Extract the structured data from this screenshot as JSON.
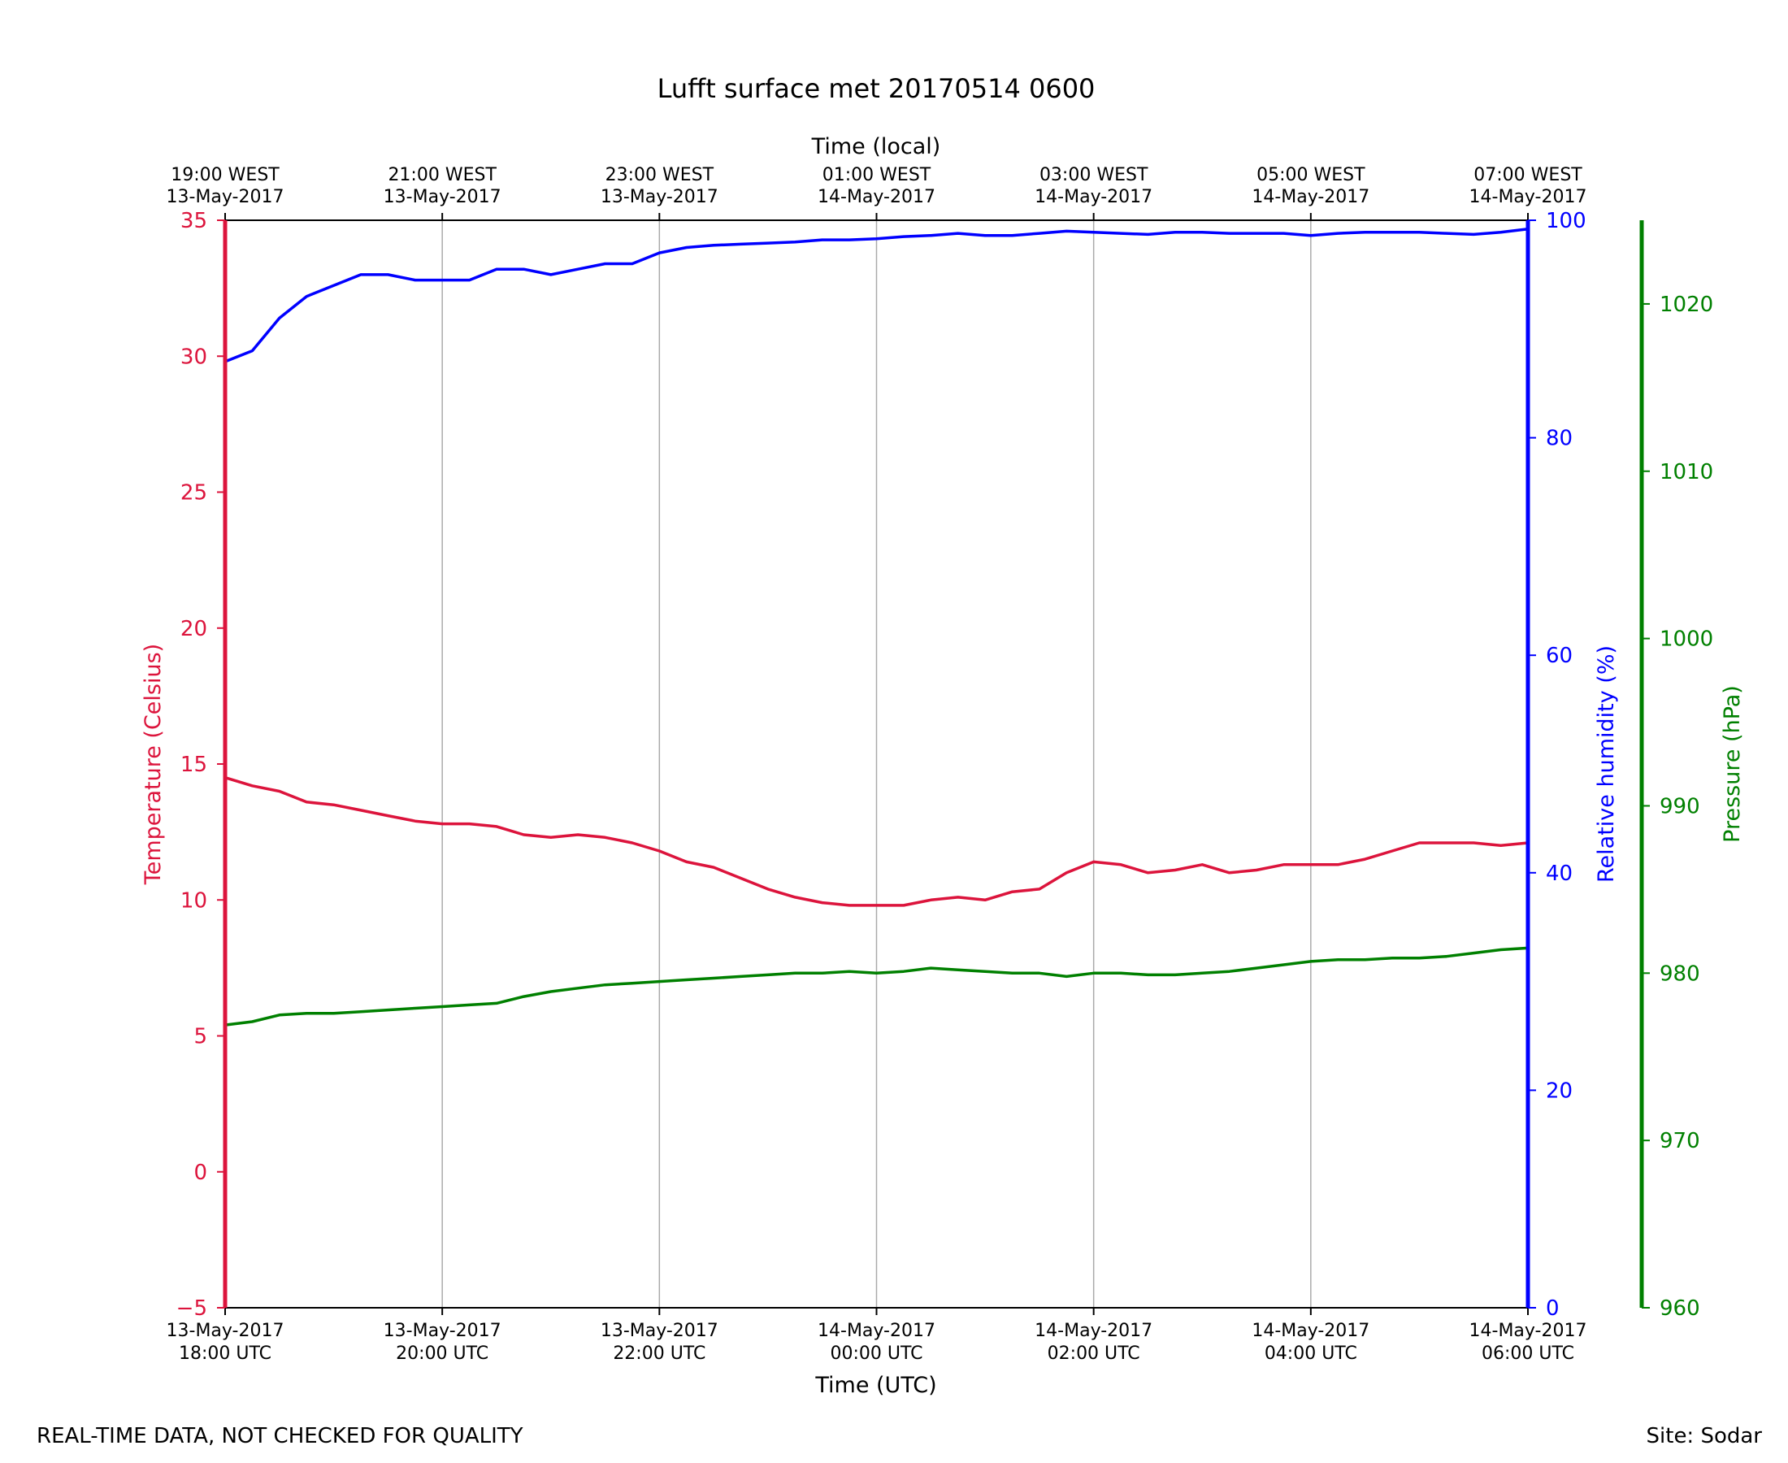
{
  "footer": {
    "left_note": "REAL-TIME DATA, NOT CHECKED FOR QUALITY",
    "site": "Site: Sodar"
  },
  "colors": {
    "temperature": "#dc143c",
    "humidity": "#0000ff",
    "pressure": "#008000",
    "grid": "#aaaaaa",
    "axis": "#000000"
  },
  "chart_data": {
    "type": "line",
    "title": "Lufft surface met 20170514 0600",
    "xlabel": "Time (UTC)",
    "x2label": "Time (local)",
    "xlim": [
      0,
      12
    ],
    "x_unit": "hours since 13-May-2017 18:00 UTC",
    "x_ticks": [
      {
        "x": 0,
        "utc": [
          "13-May-2017",
          "18:00 UTC"
        ],
        "local": [
          "19:00 WEST",
          "13-May-2017"
        ]
      },
      {
        "x": 2,
        "utc": [
          "13-May-2017",
          "20:00 UTC"
        ],
        "local": [
          "21:00 WEST",
          "13-May-2017"
        ]
      },
      {
        "x": 4,
        "utc": [
          "13-May-2017",
          "22:00 UTC"
        ],
        "local": [
          "23:00 WEST",
          "13-May-2017"
        ]
      },
      {
        "x": 6,
        "utc": [
          "14-May-2017",
          "00:00 UTC"
        ],
        "local": [
          "01:00 WEST",
          "14-May-2017"
        ]
      },
      {
        "x": 8,
        "utc": [
          "14-May-2017",
          "02:00 UTC"
        ],
        "local": [
          "03:00 WEST",
          "14-May-2017"
        ]
      },
      {
        "x": 10,
        "utc": [
          "14-May-2017",
          "04:00 UTC"
        ],
        "local": [
          "05:00 WEST",
          "14-May-2017"
        ]
      },
      {
        "x": 12,
        "utc": [
          "14-May-2017",
          "06:00 UTC"
        ],
        "local": [
          "07:00 WEST",
          "14-May-2017"
        ]
      }
    ],
    "grid": "vertical",
    "axes": [
      {
        "id": "temp",
        "label": "Temperature (Celsius)",
        "ylim": [
          -5,
          35
        ],
        "ticks": [
          -5,
          0,
          5,
          10,
          15,
          20,
          25,
          30,
          35
        ],
        "side": "left"
      },
      {
        "id": "rh",
        "label": "Relative humidity (%)",
        "ylim": [
          0,
          100
        ],
        "ticks": [
          0,
          20,
          40,
          60,
          80,
          100
        ],
        "side": "right"
      },
      {
        "id": "pres",
        "label": "Pressure (hPa)",
        "ylim": [
          960,
          1025
        ],
        "ticks": [
          960,
          970,
          980,
          990,
          1000,
          1010,
          1020
        ],
        "side": "right-outer"
      }
    ],
    "series": [
      {
        "name": "Temperature (Celsius)",
        "axis": "temp",
        "color": "#dc143c",
        "x": [
          0,
          0.25,
          0.5,
          0.75,
          1,
          1.25,
          1.5,
          1.75,
          2,
          2.25,
          2.5,
          2.75,
          3,
          3.25,
          3.5,
          3.75,
          4,
          4.25,
          4.5,
          4.75,
          5,
          5.25,
          5.5,
          5.75,
          6,
          6.25,
          6.5,
          6.75,
          7,
          7.25,
          7.5,
          7.75,
          8,
          8.25,
          8.5,
          8.75,
          9,
          9.25,
          9.5,
          9.75,
          10,
          10.25,
          10.5,
          10.75,
          11,
          11.25,
          11.5,
          11.75,
          12
        ],
        "y": [
          14.5,
          14.2,
          14.0,
          13.6,
          13.5,
          13.3,
          13.1,
          12.9,
          12.8,
          12.8,
          12.7,
          12.4,
          12.3,
          12.4,
          12.3,
          12.1,
          11.8,
          11.4,
          11.2,
          10.8,
          10.4,
          10.1,
          9.9,
          9.8,
          9.8,
          9.8,
          10.0,
          10.1,
          10.0,
          10.3,
          10.4,
          11.0,
          11.4,
          11.3,
          11.0,
          11.1,
          11.3,
          11.0,
          11.1,
          11.3,
          11.3,
          11.3,
          11.5,
          11.8,
          12.1,
          12.1,
          12.1,
          12.0,
          12.1
        ]
      },
      {
        "name": "Relative humidity (%)",
        "axis": "rh",
        "color": "#0000ff",
        "x": [
          0,
          0.25,
          0.5,
          0.75,
          1,
          1.25,
          1.5,
          1.75,
          2,
          2.25,
          2.5,
          2.75,
          3,
          3.25,
          3.5,
          3.75,
          4,
          4.25,
          4.5,
          4.75,
          5,
          5.25,
          5.5,
          5.75,
          6,
          6.25,
          6.5,
          6.75,
          7,
          7.25,
          7.5,
          7.75,
          8,
          8.25,
          8.5,
          8.75,
          9,
          9.25,
          9.5,
          9.75,
          10,
          10.25,
          10.5,
          10.75,
          11,
          11.25,
          11.5,
          11.75,
          12
        ],
        "y": [
          87,
          88,
          91,
          93,
          94,
          95,
          95,
          94.5,
          94.5,
          94.5,
          95.5,
          95.5,
          95,
          95.5,
          96,
          96,
          97,
          97.5,
          97.7,
          97.8,
          97.9,
          98.0,
          98.2,
          98.2,
          98.3,
          98.5,
          98.6,
          98.8,
          98.6,
          98.6,
          98.8,
          99,
          98.9,
          98.8,
          98.7,
          98.9,
          98.9,
          98.8,
          98.8,
          98.8,
          98.6,
          98.8,
          98.9,
          98.9,
          98.9,
          98.8,
          98.7,
          98.9,
          99.2
        ]
      },
      {
        "name": "Pressure (hPa)",
        "axis": "pres",
        "color": "#008000",
        "x": [
          0,
          0.25,
          0.5,
          0.75,
          1,
          1.25,
          1.5,
          1.75,
          2,
          2.25,
          2.5,
          2.75,
          3,
          3.25,
          3.5,
          3.75,
          4,
          4.25,
          4.5,
          4.75,
          5,
          5.25,
          5.5,
          5.75,
          6,
          6.25,
          6.5,
          6.75,
          7,
          7.25,
          7.5,
          7.75,
          8,
          8.25,
          8.5,
          8.75,
          9,
          9.25,
          9.5,
          9.75,
          10,
          10.25,
          10.5,
          10.75,
          11,
          11.25,
          11.5,
          11.75,
          12
        ],
        "y": [
          976.9,
          977.1,
          977.5,
          977.6,
          977.6,
          977.7,
          977.8,
          977.9,
          978.0,
          978.1,
          978.2,
          978.6,
          978.9,
          979.1,
          979.3,
          979.4,
          979.5,
          979.6,
          979.7,
          979.8,
          979.9,
          980.0,
          980.0,
          980.1,
          980.0,
          980.1,
          980.3,
          980.2,
          980.1,
          980.0,
          980.0,
          979.8,
          980.0,
          980.0,
          979.9,
          979.9,
          980.0,
          980.1,
          980.3,
          980.5,
          980.7,
          980.8,
          980.8,
          980.9,
          980.9,
          981.0,
          981.2,
          981.4,
          981.5
        ]
      }
    ]
  }
}
